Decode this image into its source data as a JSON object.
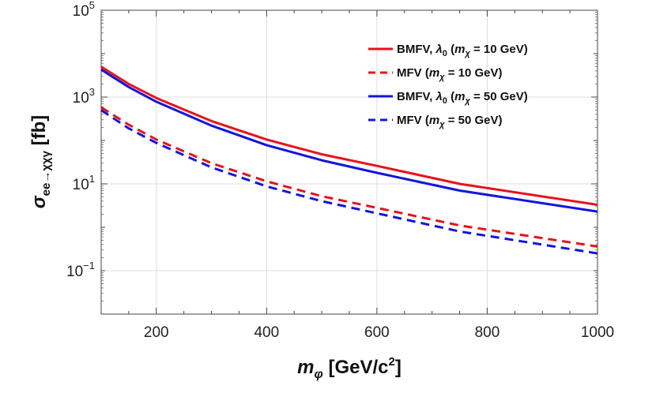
{
  "chart_data": {
    "type": "line",
    "title": "",
    "xlabel": {
      "base": "m",
      "sub": "φ",
      "units": " [GeV/c",
      "sup": "2",
      "close": "]"
    },
    "ylabel": {
      "base": "σ",
      "sub": "ee→χχγ",
      "units": " [fb]"
    },
    "xlim": [
      100,
      1000
    ],
    "ylim": [
      0.01,
      100000
    ],
    "yscale": "log",
    "grid": true,
    "legend_position": "top-right",
    "x_ticks": [
      "200",
      "400",
      "600",
      "800",
      "1000"
    ],
    "y_ticks": [
      {
        "base": "10",
        "exp": "5",
        "value": 100000
      },
      {
        "base": "10",
        "exp": "3",
        "value": 1000
      },
      {
        "base": "10",
        "exp": "1",
        "value": 10
      },
      {
        "base": "10",
        "exp": "−1",
        "value": 0.1
      }
    ],
    "series": [
      {
        "name": "BMFV, λ0 (mχ = 10 GeV)",
        "legend": {
          "pre": "BMFV, ",
          "l": "λ",
          "lsub": "0",
          "mid": " (",
          "m": "m",
          "msub": "χ",
          "post": " = 10 GeV)"
        },
        "color": "#e8121a",
        "dash": "solid",
        "x": [
          100,
          150,
          200,
          300,
          400,
          500,
          600,
          750,
          1000
        ],
        "y": [
          5000,
          2000,
          950,
          280,
          105,
          48,
          26,
          10,
          3.3
        ]
      },
      {
        "name": "MFV (mχ = 10 GeV)",
        "legend": {
          "pre": "MFV (",
          "m": "m",
          "msub": "χ",
          "post": " = 10 GeV)"
        },
        "color": "#e8121a",
        "dash": "dashed",
        "x": [
          100,
          150,
          200,
          300,
          400,
          500,
          600,
          750,
          1000
        ],
        "y": [
          580,
          230,
          105,
          30,
          11.5,
          5.2,
          2.8,
          1.1,
          0.36
        ]
      },
      {
        "name": "BMFV, λ0 (mχ = 50 GeV)",
        "legend": {
          "pre": "BMFV, ",
          "l": "λ",
          "lsub": "0",
          "mid": " (",
          "m": "m",
          "msub": "χ",
          "post": " = 50 GeV)"
        },
        "color": "#1414e0",
        "dash": "solid",
        "x": [
          100,
          150,
          200,
          300,
          400,
          500,
          600,
          750,
          1000
        ],
        "y": [
          4300,
          1700,
          780,
          220,
          78,
          35,
          18,
          7,
          2.3
        ]
      },
      {
        "name": "MFV (mχ = 50 GeV)",
        "legend": {
          "pre": "MFV (",
          "m": "m",
          "msub": "χ",
          "post": " = 50 GeV)"
        },
        "color": "#1414e0",
        "dash": "dashed",
        "x": [
          100,
          150,
          200,
          300,
          400,
          500,
          600,
          750,
          1000
        ],
        "y": [
          500,
          190,
          88,
          24,
          8.8,
          4,
          2.1,
          0.8,
          0.25
        ]
      }
    ]
  }
}
